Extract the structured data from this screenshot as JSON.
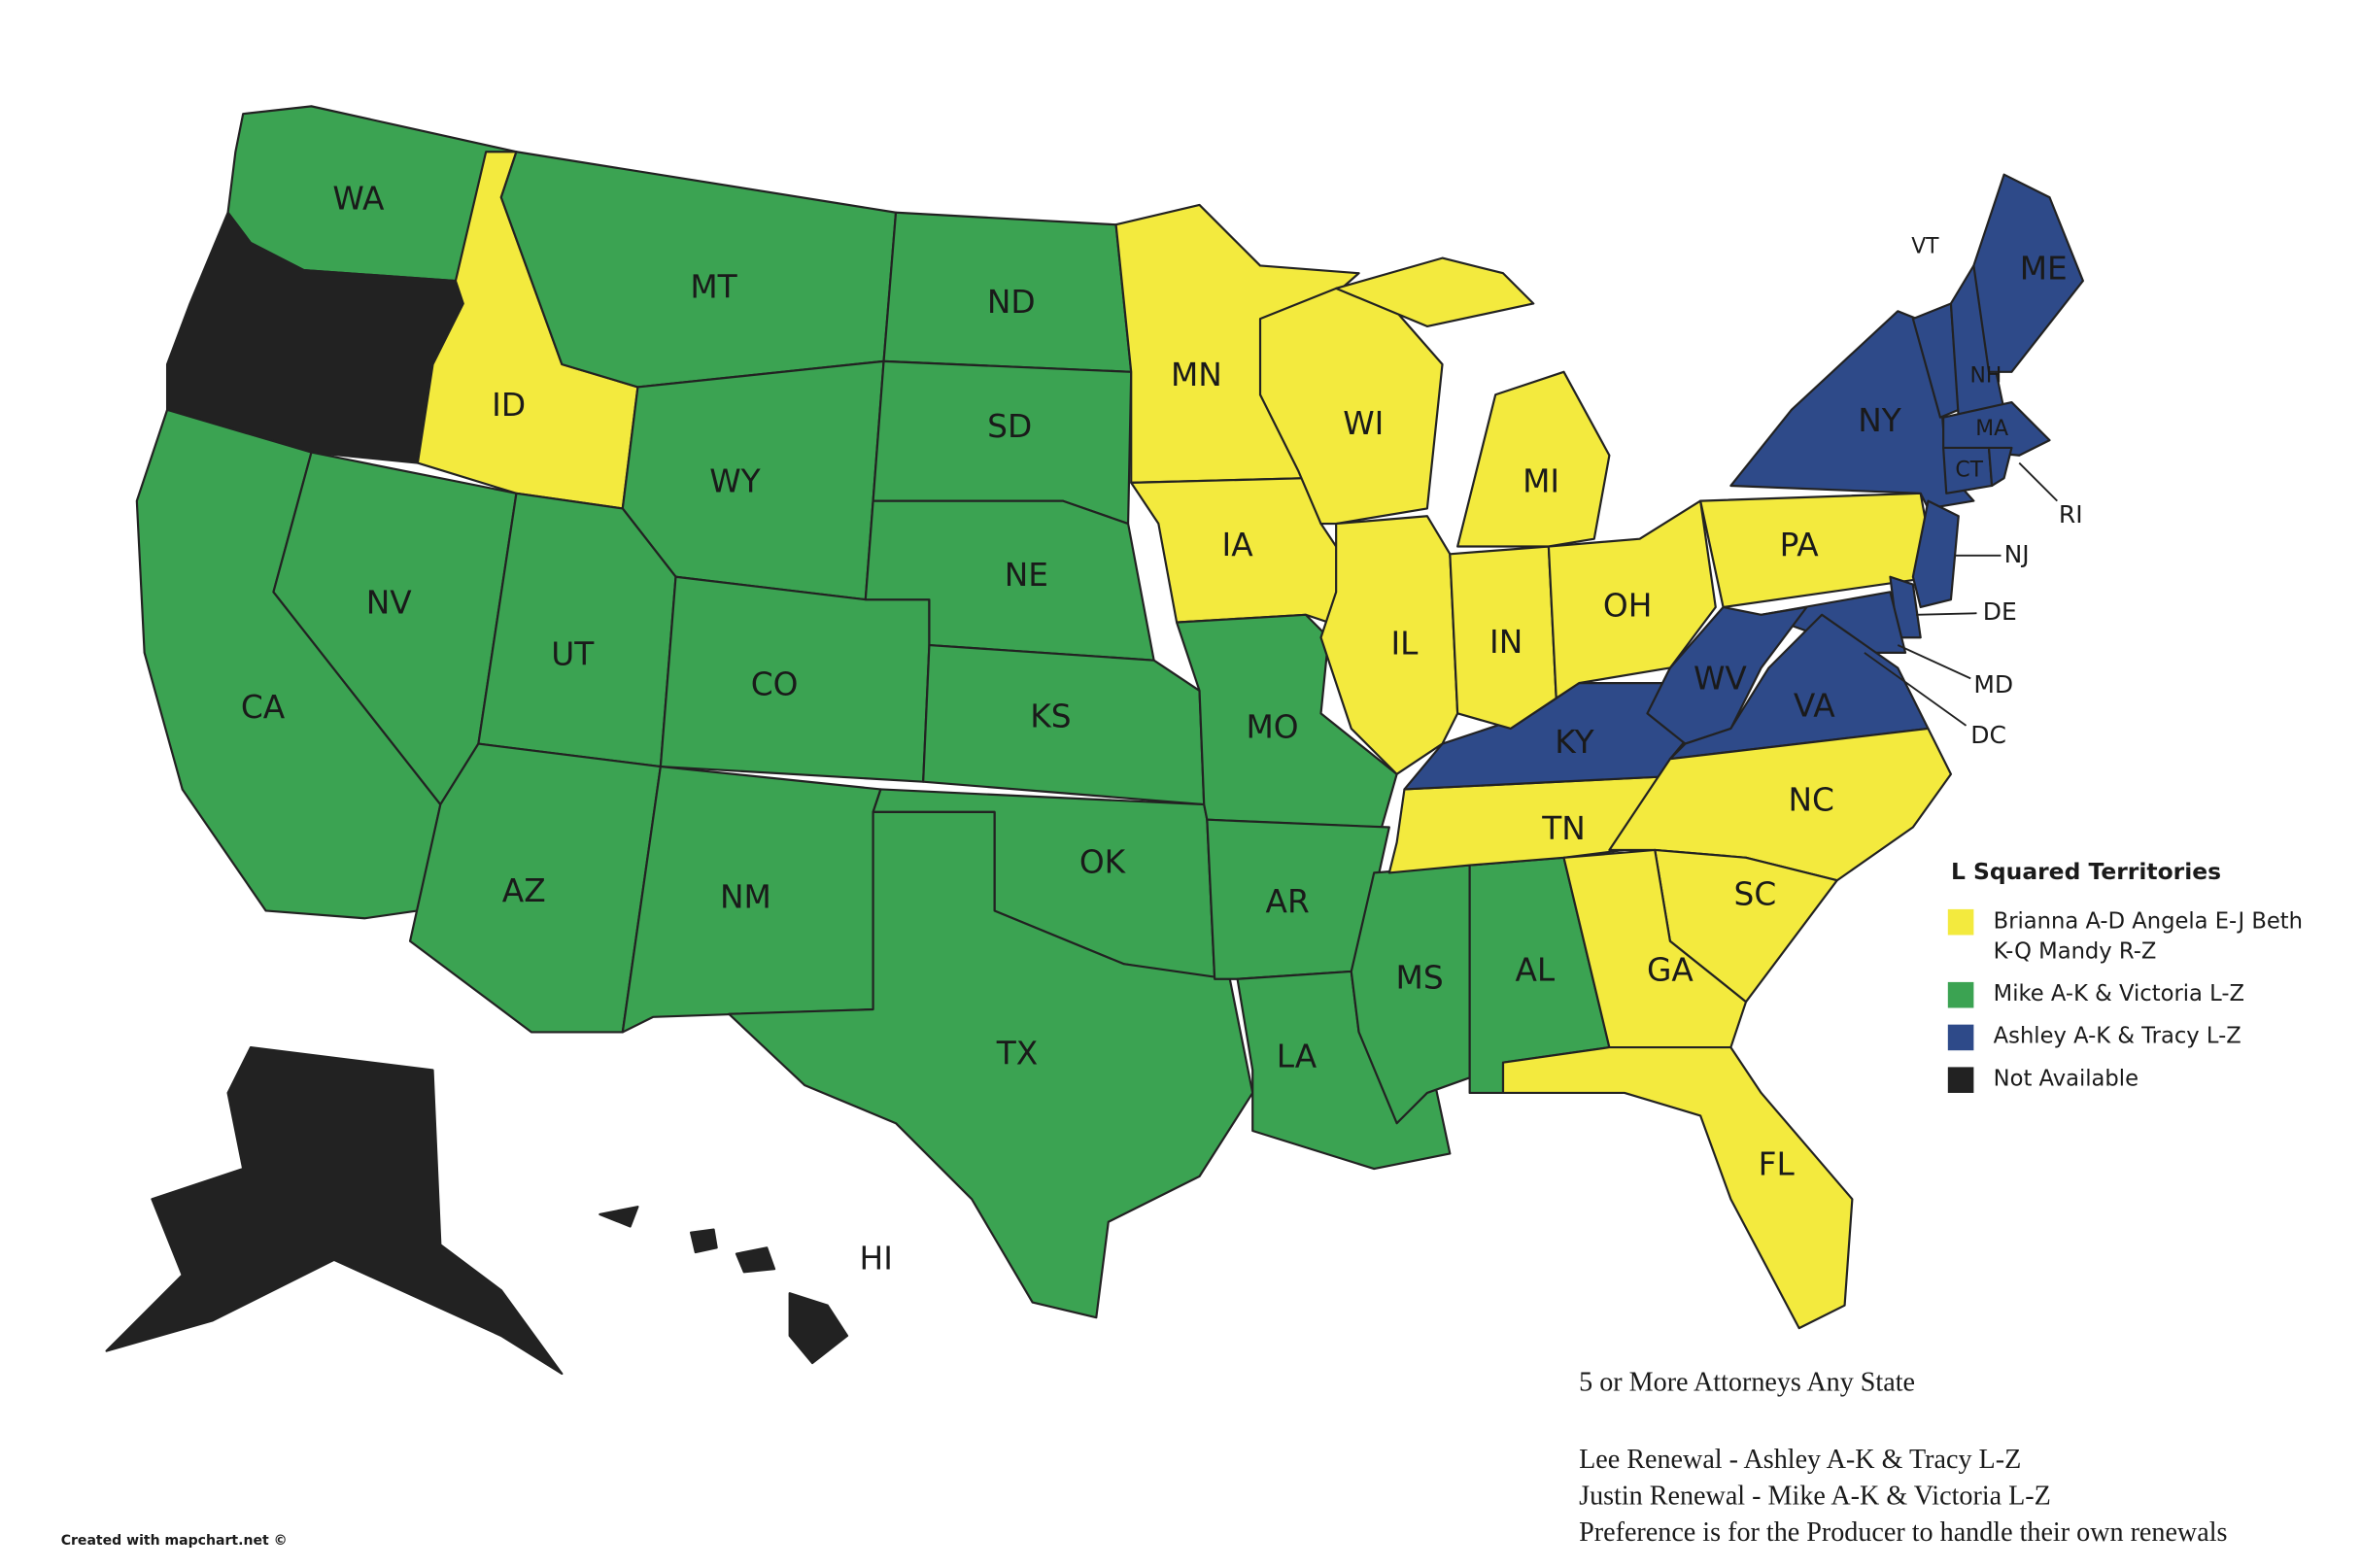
{
  "legend": {
    "title": "L Squared Territories",
    "groups": [
      {
        "label": "Brianna A-D Angela E-J Beth K-Q Mandy R-Z",
        "color": "#f3ea3e",
        "states": [
          "ID",
          "MN",
          "WI",
          "IA",
          "IL",
          "IN",
          "MI",
          "OH",
          "PA",
          "TN",
          "NC",
          "SC",
          "GA",
          "FL"
        ]
      },
      {
        "label": "Mike A-K & Victoria L-Z",
        "color": "#3ba352",
        "states": [
          "WA",
          "MT",
          "ND",
          "SD",
          "WY",
          "NV",
          "UT",
          "CO",
          "NE",
          "KS",
          "CA",
          "AZ",
          "NM",
          "OK",
          "TX",
          "MO",
          "AR",
          "LA",
          "MS",
          "AL"
        ]
      },
      {
        "label": "Ashley A-K & Tracy L-Z",
        "color": "#2e4a89",
        "states": [
          "ME",
          "VT",
          "NH",
          "NY",
          "MA",
          "CT",
          "RI",
          "NJ",
          "DE",
          "MD",
          "DC",
          "WV",
          "VA",
          "KY"
        ]
      },
      {
        "label": "Not Available",
        "color": "#222222",
        "states": [
          "HI"
        ]
      }
    ]
  },
  "notes": [
    "5 or More Attorneys Any State",
    "Lee Renewal - Ashley A-K & Tracy L-Z",
    "Justin Renewal - Mike A-K & Victoria L-Z",
    "Preference is for the Producer to handle their own renewals"
  ],
  "credit": "Created with mapchart.net ©"
}
